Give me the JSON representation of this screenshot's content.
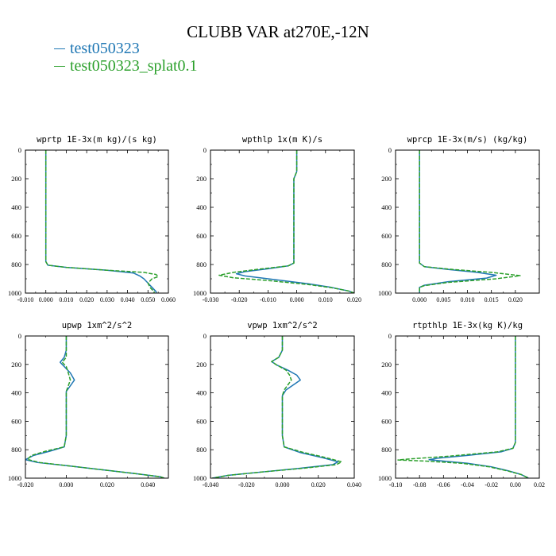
{
  "title": "CLUBB VAR at270E,-12N",
  "legend": [
    {
      "label": "test050323",
      "color": "#1f77b4"
    },
    {
      "label": "test050323_splat0.1",
      "color": "#2ca02c"
    }
  ],
  "chart_data": [
    {
      "type": "line",
      "title": "wprtp  1E-3x(m kg)/(s kg)",
      "xlim": [
        -0.01,
        0.06
      ],
      "ylim": [
        0,
        1000
      ],
      "xticks": [
        -0.01,
        0.0,
        0.01,
        0.02,
        0.03,
        0.04,
        0.05,
        0.06
      ],
      "xtick_labels": [
        "-0.010",
        "0.000",
        "0.010",
        "0.020",
        "0.030",
        "0.040",
        "0.050",
        "0.060"
      ],
      "yticks": [
        0,
        200,
        400,
        600,
        800,
        1000
      ],
      "ytick_labels": [
        "0",
        "200",
        "400",
        "600",
        "800",
        "1000"
      ],
      "series": [
        {
          "name": "test050323",
          "points": [
            [
              0.0,
              0
            ],
            [
              0.0,
              200
            ],
            [
              0.0,
              400
            ],
            [
              0.0,
              600
            ],
            [
              0.0,
              780
            ],
            [
              0.001,
              805
            ],
            [
              0.01,
              820
            ],
            [
              0.03,
              840
            ],
            [
              0.043,
              860
            ],
            [
              0.046,
              880
            ],
            [
              0.048,
              900
            ],
            [
              0.05,
              930
            ],
            [
              0.052,
              960
            ],
            [
              0.054,
              990
            ],
            [
              0.054,
              1000
            ]
          ]
        },
        {
          "name": "test050323_splat0.1",
          "points": [
            [
              0.0,
              0
            ],
            [
              0.0,
              200
            ],
            [
              0.0,
              400
            ],
            [
              0.0,
              600
            ],
            [
              0.0,
              780
            ],
            [
              0.001,
              805
            ],
            [
              0.01,
              820
            ],
            [
              0.03,
              840
            ],
            [
              0.048,
              855
            ],
            [
              0.054,
              870
            ],
            [
              0.055,
              885
            ],
            [
              0.052,
              900
            ],
            [
              0.05,
              930
            ],
            [
              0.051,
              960
            ],
            [
              0.053,
              990
            ],
            [
              0.053,
              1000
            ]
          ]
        }
      ]
    },
    {
      "type": "line",
      "title": "wpthlp  1x(m K)/s",
      "xlim": [
        -0.03,
        0.02
      ],
      "ylim": [
        0,
        1000
      ],
      "xticks": [
        -0.03,
        -0.02,
        -0.01,
        0.0,
        0.01,
        0.02
      ],
      "xtick_labels": [
        "-0.030",
        "-0.020",
        "-0.010",
        "0.000",
        "0.010",
        "0.020"
      ],
      "yticks": [
        0,
        200,
        400,
        600,
        800,
        1000
      ],
      "ytick_labels": [
        "0",
        "200",
        "400",
        "600",
        "800",
        "1000"
      ],
      "series": [
        {
          "name": "test050323",
          "points": [
            [
              0.0,
              0
            ],
            [
              0.0,
              100
            ],
            [
              0.0,
              150
            ],
            [
              -0.001,
              200
            ],
            [
              -0.001,
              400
            ],
            [
              -0.001,
              600
            ],
            [
              -0.001,
              790
            ],
            [
              -0.003,
              810
            ],
            [
              -0.01,
              830
            ],
            [
              -0.018,
              850
            ],
            [
              -0.021,
              865
            ],
            [
              -0.018,
              880
            ],
            [
              -0.008,
              905
            ],
            [
              0.004,
              935
            ],
            [
              0.012,
              960
            ],
            [
              0.018,
              985
            ],
            [
              0.02,
              1000
            ]
          ]
        },
        {
          "name": "test050323_splat0.1",
          "points": [
            [
              0.0,
              0
            ],
            [
              0.0,
              100
            ],
            [
              0.0,
              150
            ],
            [
              -0.001,
              200
            ],
            [
              -0.001,
              400
            ],
            [
              -0.001,
              600
            ],
            [
              -0.001,
              790
            ],
            [
              -0.003,
              810
            ],
            [
              -0.012,
              830
            ],
            [
              -0.022,
              855
            ],
            [
              -0.027,
              875
            ],
            [
              -0.022,
              893
            ],
            [
              -0.01,
              912
            ],
            [
              0.004,
              940
            ],
            [
              0.012,
              962
            ],
            [
              0.018,
              985
            ],
            [
              0.02,
              1000
            ]
          ]
        }
      ]
    },
    {
      "type": "line",
      "title": "wprcp  1E-3x(m/s) (kg/kg)",
      "xlim": [
        -0.005,
        0.025
      ],
      "ylim": [
        0,
        1000
      ],
      "xticks": [
        0.0,
        0.005,
        0.01,
        0.015,
        0.02
      ],
      "xtick_labels": [
        "0.000",
        "0.005",
        "0.010",
        "0.015",
        "0.020"
      ],
      "yticks": [
        0,
        200,
        400,
        600,
        800,
        1000
      ],
      "ytick_labels": [
        "0",
        "200",
        "400",
        "600",
        "800",
        "1000"
      ],
      "series": [
        {
          "name": "test050323",
          "points": [
            [
              0.0,
              0
            ],
            [
              0.0,
              200
            ],
            [
              0.0,
              400
            ],
            [
              0.0,
              600
            ],
            [
              0.0,
              790
            ],
            [
              0.001,
              815
            ],
            [
              0.006,
              835
            ],
            [
              0.012,
              855
            ],
            [
              0.016,
              875
            ],
            [
              0.014,
              895
            ],
            [
              0.006,
              920
            ],
            [
              0.001,
              945
            ],
            [
              0.0,
              960
            ],
            [
              0.0,
              1000
            ]
          ]
        },
        {
          "name": "test050323_splat0.1",
          "points": [
            [
              0.0,
              0
            ],
            [
              0.0,
              200
            ],
            [
              0.0,
              400
            ],
            [
              0.0,
              600
            ],
            [
              0.0,
              790
            ],
            [
              0.001,
              815
            ],
            [
              0.007,
              835
            ],
            [
              0.015,
              855
            ],
            [
              0.021,
              878
            ],
            [
              0.016,
              900
            ],
            [
              0.006,
              925
            ],
            [
              0.001,
              948
            ],
            [
              0.0,
              960
            ],
            [
              0.0,
              1000
            ]
          ]
        }
      ]
    },
    {
      "type": "line",
      "title": "upwp  1xm^2/s^2",
      "xlim": [
        -0.02,
        0.05
      ],
      "ylim": [
        0,
        1000
      ],
      "xticks": [
        -0.02,
        0.0,
        0.02,
        0.04
      ],
      "xtick_labels": [
        "-0.020",
        "0.000",
        "0.020",
        "0.040"
      ],
      "yticks": [
        0,
        200,
        400,
        600,
        800,
        1000
      ],
      "ytick_labels": [
        "0",
        "200",
        "400",
        "600",
        "800",
        "1000"
      ],
      "series": [
        {
          "name": "test050323",
          "points": [
            [
              0.0,
              0
            ],
            [
              0.0,
              100
            ],
            [
              -0.001,
              150
            ],
            [
              -0.003,
              185
            ],
            [
              -0.001,
              215
            ],
            [
              0.002,
              260
            ],
            [
              0.004,
              310
            ],
            [
              0.002,
              350
            ],
            [
              0.0,
              390
            ],
            [
              0.0,
              500
            ],
            [
              0.0,
              700
            ],
            [
              -0.001,
              780
            ],
            [
              -0.008,
              810
            ],
            [
              -0.016,
              840
            ],
            [
              -0.02,
              870
            ],
            [
              -0.014,
              890
            ],
            [
              0.002,
              915
            ],
            [
              0.02,
              945
            ],
            [
              0.035,
              970
            ],
            [
              0.046,
              990
            ],
            [
              0.048,
              1000
            ]
          ]
        },
        {
          "name": "test050323_splat0.1",
          "points": [
            [
              0.0,
              0
            ],
            [
              0.0,
              100
            ],
            [
              0.0,
              150
            ],
            [
              -0.002,
              185
            ],
            [
              0.0,
              215
            ],
            [
              0.001,
              260
            ],
            [
              0.002,
              310
            ],
            [
              0.001,
              350
            ],
            [
              0.0,
              390
            ],
            [
              0.0,
              500
            ],
            [
              0.0,
              700
            ],
            [
              -0.001,
              780
            ],
            [
              -0.01,
              810
            ],
            [
              -0.017,
              840
            ],
            [
              -0.019,
              868
            ],
            [
              -0.013,
              890
            ],
            [
              0.002,
              915
            ],
            [
              0.02,
              945
            ],
            [
              0.035,
              970
            ],
            [
              0.046,
              990
            ],
            [
              0.048,
              1000
            ]
          ]
        }
      ]
    },
    {
      "type": "line",
      "title": "vpwp  1xm^2/s^2",
      "xlim": [
        -0.04,
        0.04
      ],
      "ylim": [
        0,
        1000
      ],
      "xticks": [
        -0.04,
        -0.02,
        0.0,
        0.02,
        0.04
      ],
      "xtick_labels": [
        "-0.040",
        "-0.020",
        "0.000",
        "0.020",
        "0.040"
      ],
      "yticks": [
        0,
        200,
        400,
        600,
        800,
        1000
      ],
      "ytick_labels": [
        "0",
        "200",
        "400",
        "600",
        "800",
        "1000"
      ],
      "series": [
        {
          "name": "test050323",
          "points": [
            [
              0.0,
              0
            ],
            [
              0.0,
              100
            ],
            [
              -0.002,
              150
            ],
            [
              -0.006,
              180
            ],
            [
              -0.003,
              205
            ],
            [
              0.003,
              240
            ],
            [
              0.008,
              275
            ],
            [
              0.01,
              310
            ],
            [
              0.006,
              345
            ],
            [
              0.002,
              380
            ],
            [
              0.0,
              420
            ],
            [
              0.0,
              500
            ],
            [
              0.0,
              700
            ],
            [
              0.001,
              780
            ],
            [
              0.01,
              820
            ],
            [
              0.022,
              855
            ],
            [
              0.031,
              885
            ],
            [
              0.028,
              905
            ],
            [
              0.01,
              930
            ],
            [
              -0.01,
              955
            ],
            [
              -0.03,
              980
            ],
            [
              -0.039,
              1000
            ]
          ]
        },
        {
          "name": "test050323_splat0.1",
          "points": [
            [
              0.0,
              0
            ],
            [
              0.0,
              100
            ],
            [
              -0.002,
              150
            ],
            [
              -0.006,
              180
            ],
            [
              -0.003,
              205
            ],
            [
              0.002,
              240
            ],
            [
              0.004,
              275
            ],
            [
              0.005,
              310
            ],
            [
              0.003,
              345
            ],
            [
              0.001,
              380
            ],
            [
              0.0,
              420
            ],
            [
              0.0,
              500
            ],
            [
              0.0,
              700
            ],
            [
              0.001,
              780
            ],
            [
              0.012,
              820
            ],
            [
              0.024,
              855
            ],
            [
              0.033,
              885
            ],
            [
              0.03,
              905
            ],
            [
              0.012,
              930
            ],
            [
              -0.01,
              955
            ],
            [
              -0.03,
              980
            ],
            [
              -0.039,
              1000
            ]
          ]
        }
      ]
    },
    {
      "type": "line",
      "title": "rtpthlp  1E-3x(kg K)/kg",
      "xlim": [
        -0.1,
        0.02
      ],
      "ylim": [
        0,
        1000
      ],
      "xticks": [
        -0.1,
        -0.08,
        -0.06,
        -0.04,
        -0.02,
        0.0,
        0.02
      ],
      "xtick_labels": [
        "-0.10",
        "-0.08",
        "-0.06",
        "-0.04",
        "-0.02",
        "0.00",
        "0.02"
      ],
      "yticks": [
        0,
        200,
        400,
        600,
        800,
        1000
      ],
      "ytick_labels": [
        "0",
        "200",
        "400",
        "600",
        "800",
        "1000"
      ],
      "series": [
        {
          "name": "test050323",
          "points": [
            [
              0.0,
              0
            ],
            [
              0.0,
              200
            ],
            [
              0.0,
              400
            ],
            [
              0.0,
              600
            ],
            [
              0.0,
              750
            ],
            [
              -0.002,
              790
            ],
            [
              -0.012,
              815
            ],
            [
              -0.04,
              840
            ],
            [
              -0.065,
              860
            ],
            [
              -0.072,
              870
            ],
            [
              -0.06,
              880
            ],
            [
              -0.04,
              895
            ],
            [
              -0.02,
              920
            ],
            [
              -0.005,
              950
            ],
            [
              0.005,
              975
            ],
            [
              0.011,
              1000
            ]
          ]
        },
        {
          "name": "test050323_splat0.1",
          "points": [
            [
              0.0,
              0
            ],
            [
              0.0,
              200
            ],
            [
              0.0,
              400
            ],
            [
              0.0,
              600
            ],
            [
              0.0,
              750
            ],
            [
              -0.002,
              790
            ],
            [
              -0.015,
              815
            ],
            [
              -0.055,
              845
            ],
            [
              -0.09,
              866
            ],
            [
              -0.098,
              872
            ],
            [
              -0.075,
              880
            ],
            [
              -0.045,
              895
            ],
            [
              -0.022,
              920
            ],
            [
              -0.006,
              950
            ],
            [
              0.005,
              975
            ],
            [
              0.011,
              1000
            ]
          ]
        }
      ]
    }
  ]
}
